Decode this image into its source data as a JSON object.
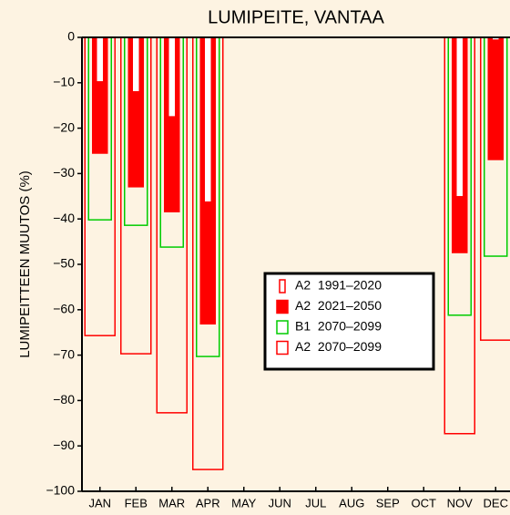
{
  "chart_data": {
    "type": "bar",
    "title": "LUMIPEITE, VANTAA",
    "ylabel": "LUMIPEITTEEN MUUTOS (%)",
    "categories": [
      "JAN",
      "FEB",
      "MAR",
      "APR",
      "MAY",
      "JUN",
      "JUL",
      "AUG",
      "SEP",
      "OCT",
      "NOV",
      "DEC"
    ],
    "series": [
      {
        "name": "A2  1991–2020",
        "color": "#ff0000",
        "fill": "#ffffff",
        "values": [
          -9.8,
          -12,
          -17.5,
          -36.3,
          null,
          null,
          null,
          null,
          null,
          null,
          -35.1,
          -0.6
        ]
      },
      {
        "name": "A2  2021–2050",
        "color": "#ff0000",
        "fill": "#ff0000",
        "values": [
          -25.5,
          -32.9,
          -38.4,
          -63.1,
          null,
          null,
          null,
          null,
          null,
          null,
          -47.4,
          -26.9
        ]
      },
      {
        "name": "B1  2070–2099",
        "color": "#00cc00",
        "fill": "none",
        "values": [
          -40.2,
          -41.4,
          -46.2,
          -70.3,
          null,
          null,
          null,
          null,
          null,
          null,
          -61.2,
          -48.2
        ]
      },
      {
        "name": "A2  2070–2099",
        "color": "#ff0000",
        "fill": "none",
        "values": [
          -65.7,
          -69.7,
          -82.7,
          -95.2,
          null,
          null,
          null,
          null,
          null,
          null,
          -87.3,
          -66.7
        ]
      }
    ],
    "ylim": [
      -100,
      0
    ],
    "yticks": [
      0,
      {
        "value": -10,
        "label": "−10"
      },
      {
        "value": -20,
        "label": "−20"
      },
      {
        "value": -30,
        "label": "−30"
      },
      {
        "value": -40,
        "label": "−40"
      },
      {
        "value": -50,
        "label": "−50"
      },
      {
        "value": -60,
        "label": "−60"
      },
      {
        "value": -70,
        "label": "−70"
      },
      {
        "value": -80,
        "label": "−80"
      },
      {
        "value": -90,
        "label": "−90"
      },
      {
        "value": -100,
        "label": "−100"
      }
    ]
  }
}
